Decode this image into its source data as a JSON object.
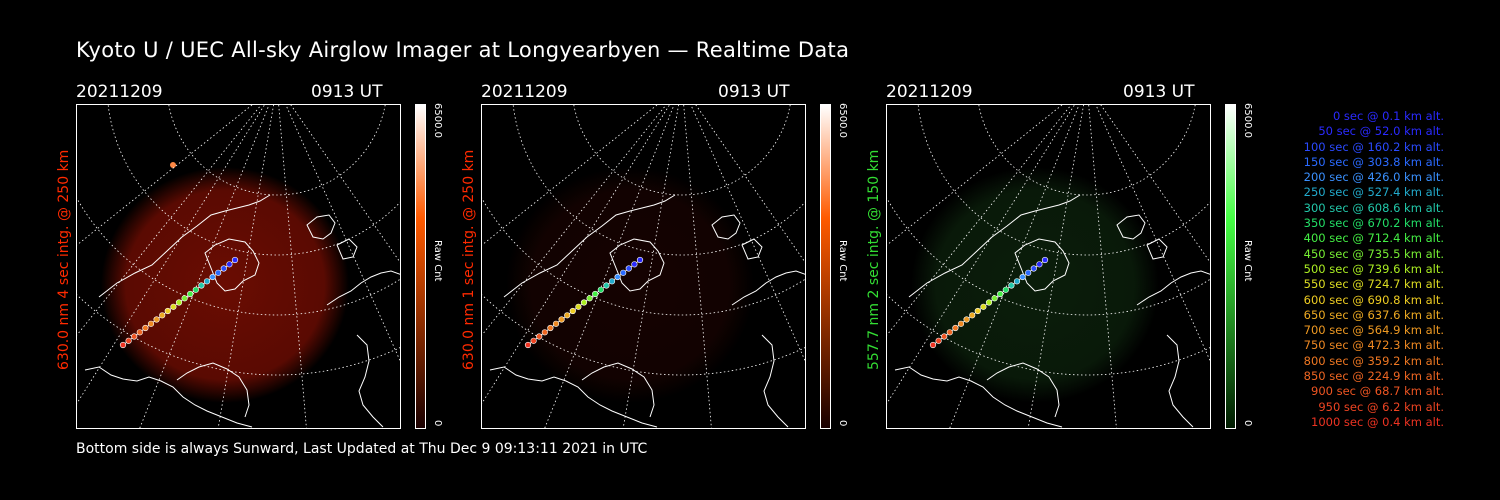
{
  "title": "Kyoto U / UEC All-sky Airglow Imager at Longyearbyen — Realtime Data",
  "footer": "Bottom side is always Sunward, Last Updated at Thu Dec  9 09:13:11 2021 in UTC",
  "panels": [
    {
      "date": "20211209",
      "time": "0913 UT",
      "side_label": "630.0 nm 4 sec intg. @ 250 km",
      "label_color": "#ff2a00",
      "colorbar": {
        "max": "6500.0",
        "min": "0",
        "unit": "Raw Cnt",
        "top_color": "#ffffff",
        "mid_color": "#ff5a00",
        "bottom_color": "#1a0000"
      },
      "glow_color": "#6a0c02",
      "glow_level": 1.0
    },
    {
      "date": "20211209",
      "time": "0913 UT",
      "side_label": "630.0 nm 1 sec intg. @ 250 km",
      "label_color": "#ff2a00",
      "colorbar": {
        "max": "6500.0",
        "min": "0",
        "unit": "Raw Cnt",
        "top_color": "#ffffff",
        "mid_color": "#ff5a00",
        "bottom_color": "#1a0000"
      },
      "glow_color": "#2a0502",
      "glow_level": 0.5
    },
    {
      "date": "20211209",
      "time": "0913 UT",
      "side_label": "557.7 nm 2 sec intg. @ 150 km",
      "label_color": "#33dd33",
      "colorbar": {
        "max": "6500.0",
        "min": "0",
        "unit": "Raw Cnt",
        "top_color": "#ffffff",
        "mid_color": "#44ff44",
        "bottom_color": "#001a00"
      },
      "glow_color": "#0f2a0f",
      "glow_level": 0.7
    }
  ],
  "trajectory": [
    {
      "t": "0 sec @",
      "alt": "0.1 km alt.",
      "color": "#2a2aff"
    },
    {
      "t": "50 sec @",
      "alt": "52.0 km alt.",
      "color": "#2a2aff"
    },
    {
      "t": "100 sec @",
      "alt": "160.2 km alt.",
      "color": "#2a4aff"
    },
    {
      "t": "150 sec @",
      "alt": "303.8 km alt.",
      "color": "#2a6aff"
    },
    {
      "t": "200 sec @",
      "alt": "426.0 km alt.",
      "color": "#3a90ff"
    },
    {
      "t": "250 sec @",
      "alt": "527.4 km alt.",
      "color": "#22aacc"
    },
    {
      "t": "300 sec @",
      "alt": "608.6 km alt.",
      "color": "#22c8aa"
    },
    {
      "t": "350 sec @",
      "alt": "670.2 km alt.",
      "color": "#22dd66"
    },
    {
      "t": "400 sec @",
      "alt": "712.4 km alt.",
      "color": "#44ee44"
    },
    {
      "t": "450 sec @",
      "alt": "735.5 km alt.",
      "color": "#77ee33"
    },
    {
      "t": "500 sec @",
      "alt": "739.6 km alt.",
      "color": "#aaee22"
    },
    {
      "t": "550 sec @",
      "alt": "724.7 km alt.",
      "color": "#dddd22"
    },
    {
      "t": "600 sec @",
      "alt": "690.8 km alt.",
      "color": "#eecc22"
    },
    {
      "t": "650 sec @",
      "alt": "637.6 km alt.",
      "color": "#eeaa22"
    },
    {
      "t": "700 sec @",
      "alt": "564.9 km alt.",
      "color": "#ee9922"
    },
    {
      "t": "750 sec @",
      "alt": "472.3 km alt.",
      "color": "#ee8822"
    },
    {
      "t": "800 sec @",
      "alt": "359.2 km alt.",
      "color": "#ee7722"
    },
    {
      "t": "850 sec @",
      "alt": "224.9 km alt.",
      "color": "#ee6622"
    },
    {
      "t": "900 sec @",
      "alt": "68.7 km alt.",
      "color": "#ee5522"
    },
    {
      "t": "950 sec @",
      "alt": "6.2 km alt.",
      "color": "#ee4422"
    },
    {
      "t": "1000 sec @",
      "alt": "0.4 km alt.",
      "color": "#ee3322"
    }
  ]
}
